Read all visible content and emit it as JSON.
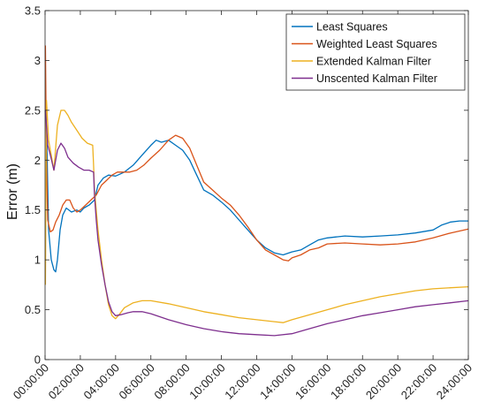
{
  "chart_data": {
    "type": "line",
    "title": "",
    "xlabel": "",
    "ylabel": "Error (m)",
    "xlim": [
      0,
      24
    ],
    "ylim": [
      0,
      3.5
    ],
    "x_ticks": [
      0,
      2,
      4,
      6,
      8,
      10,
      12,
      14,
      16,
      18,
      20,
      22,
      24
    ],
    "x_tick_labels": [
      "00:00:00",
      "02:00:00",
      "04:00:00",
      "06:00:00",
      "08:00:00",
      "10:00:00",
      "12:00:00",
      "14:00:00",
      "16:00:00",
      "18:00:00",
      "20:00:00",
      "22:00:00",
      "24:00:00"
    ],
    "y_ticks": [
      0,
      0.5,
      1,
      1.5,
      2,
      2.5,
      3,
      3.5
    ],
    "y_tick_labels": [
      "0",
      "0.5",
      "1",
      "1.5",
      "2",
      "2.5",
      "3",
      "3.5"
    ],
    "grid": false,
    "legend_position": "top-right",
    "series": [
      {
        "name": "Least Squares",
        "color": "#0072BD",
        "x": [
          0.02,
          0.1,
          0.2,
          0.35,
          0.5,
          0.6,
          0.7,
          0.85,
          1.0,
          1.2,
          1.5,
          1.8,
          2.0,
          2.2,
          2.5,
          2.8,
          3.0,
          3.3,
          3.6,
          4.0,
          4.5,
          5.0,
          5.5,
          6.0,
          6.3,
          6.6,
          7.0,
          7.4,
          7.8,
          8.2,
          8.6,
          9.0,
          9.5,
          10.0,
          10.5,
          11.0,
          11.5,
          12.0,
          12.5,
          13.0,
          13.5,
          14.0,
          14.5,
          15.0,
          15.5,
          16.0,
          16.5,
          17.0,
          18.0,
          19.0,
          20.0,
          21.0,
          22.0,
          22.5,
          23.0,
          23.5,
          24.0
        ],
        "y": [
          2.5,
          2.2,
          1.3,
          1.0,
          0.9,
          0.88,
          1.0,
          1.3,
          1.45,
          1.52,
          1.48,
          1.5,
          1.48,
          1.52,
          1.55,
          1.6,
          1.75,
          1.82,
          1.85,
          1.84,
          1.88,
          1.95,
          2.05,
          2.15,
          2.2,
          2.18,
          2.2,
          2.15,
          2.1,
          2.0,
          1.85,
          1.7,
          1.65,
          1.58,
          1.5,
          1.4,
          1.3,
          1.2,
          1.12,
          1.07,
          1.05,
          1.08,
          1.1,
          1.15,
          1.2,
          1.22,
          1.23,
          1.24,
          1.23,
          1.24,
          1.25,
          1.27,
          1.3,
          1.35,
          1.38,
          1.39,
          1.39
        ]
      },
      {
        "name": "Weighted Least Squares",
        "color": "#D95319",
        "x": [
          0.02,
          0.08,
          0.15,
          0.3,
          0.45,
          0.6,
          0.8,
          1.0,
          1.2,
          1.4,
          1.6,
          1.8,
          2.0,
          2.3,
          2.6,
          2.9,
          3.2,
          3.5,
          3.8,
          4.1,
          4.4,
          4.8,
          5.2,
          5.6,
          6.0,
          6.5,
          7.0,
          7.4,
          7.8,
          8.2,
          8.6,
          9.0,
          9.5,
          10.0,
          10.5,
          11.0,
          11.5,
          12.0,
          12.5,
          13.0,
          13.5,
          13.8,
          14.0,
          14.5,
          15.0,
          15.5,
          16.0,
          17.0,
          18.0,
          19.0,
          20.0,
          21.0,
          22.0,
          23.0,
          24.0
        ],
        "y": [
          3.15,
          2.0,
          1.4,
          1.28,
          1.3,
          1.38,
          1.45,
          1.55,
          1.6,
          1.6,
          1.52,
          1.48,
          1.5,
          1.55,
          1.6,
          1.65,
          1.75,
          1.8,
          1.85,
          1.88,
          1.88,
          1.88,
          1.9,
          1.95,
          2.02,
          2.1,
          2.2,
          2.25,
          2.22,
          2.12,
          1.95,
          1.78,
          1.7,
          1.62,
          1.55,
          1.45,
          1.33,
          1.2,
          1.1,
          1.05,
          1.0,
          0.99,
          1.02,
          1.05,
          1.1,
          1.12,
          1.16,
          1.17,
          1.16,
          1.15,
          1.16,
          1.18,
          1.22,
          1.27,
          1.31
        ]
      },
      {
        "name": "Extended Kalman Filter",
        "color": "#EDB120",
        "x": [
          0.02,
          0.08,
          0.2,
          0.35,
          0.5,
          0.7,
          0.9,
          1.1,
          1.3,
          1.5,
          1.8,
          2.1,
          2.4,
          2.7,
          2.75,
          2.8,
          2.9,
          3.0,
          3.2,
          3.4,
          3.6,
          3.8,
          4.0,
          4.2,
          4.5,
          5.0,
          5.5,
          6.0,
          7.0,
          8.0,
          9.0,
          10.0,
          11.0,
          12.0,
          13.0,
          13.5,
          14.0,
          15.0,
          16.0,
          17.0,
          18.0,
          19.0,
          20.0,
          21.0,
          22.0,
          23.0,
          24.0
        ],
        "y": [
          0.75,
          2.6,
          2.2,
          2.05,
          1.9,
          2.35,
          2.5,
          2.5,
          2.45,
          2.38,
          2.3,
          2.22,
          2.17,
          2.15,
          1.95,
          1.7,
          1.5,
          1.3,
          1.0,
          0.75,
          0.55,
          0.44,
          0.41,
          0.45,
          0.52,
          0.57,
          0.59,
          0.59,
          0.56,
          0.52,
          0.48,
          0.45,
          0.42,
          0.4,
          0.38,
          0.37,
          0.4,
          0.45,
          0.5,
          0.55,
          0.59,
          0.63,
          0.66,
          0.69,
          0.71,
          0.72,
          0.73
        ]
      },
      {
        "name": "Unscented Kalman Filter",
        "color": "#7E2F8E",
        "x": [
          0.02,
          0.06,
          0.15,
          0.3,
          0.5,
          0.7,
          0.9,
          1.1,
          1.3,
          1.6,
          1.9,
          2.2,
          2.5,
          2.75,
          2.8,
          2.9,
          3.0,
          3.2,
          3.4,
          3.6,
          3.8,
          4.0,
          4.3,
          4.7,
          5.0,
          5.5,
          6.0,
          7.0,
          8.0,
          9.0,
          10.0,
          11.0,
          12.0,
          13.0,
          14.0,
          15.0,
          16.0,
          17.0,
          18.0,
          19.0,
          20.0,
          21.0,
          22.0,
          23.0,
          24.0
        ],
        "y": [
          2.5,
          2.4,
          2.15,
          2.05,
          1.9,
          2.1,
          2.17,
          2.12,
          2.03,
          1.97,
          1.93,
          1.9,
          1.9,
          1.88,
          1.65,
          1.4,
          1.2,
          0.95,
          0.75,
          0.58,
          0.48,
          0.44,
          0.45,
          0.47,
          0.48,
          0.48,
          0.46,
          0.4,
          0.35,
          0.31,
          0.28,
          0.26,
          0.25,
          0.24,
          0.26,
          0.31,
          0.36,
          0.4,
          0.44,
          0.47,
          0.5,
          0.53,
          0.55,
          0.57,
          0.59
        ]
      }
    ]
  }
}
